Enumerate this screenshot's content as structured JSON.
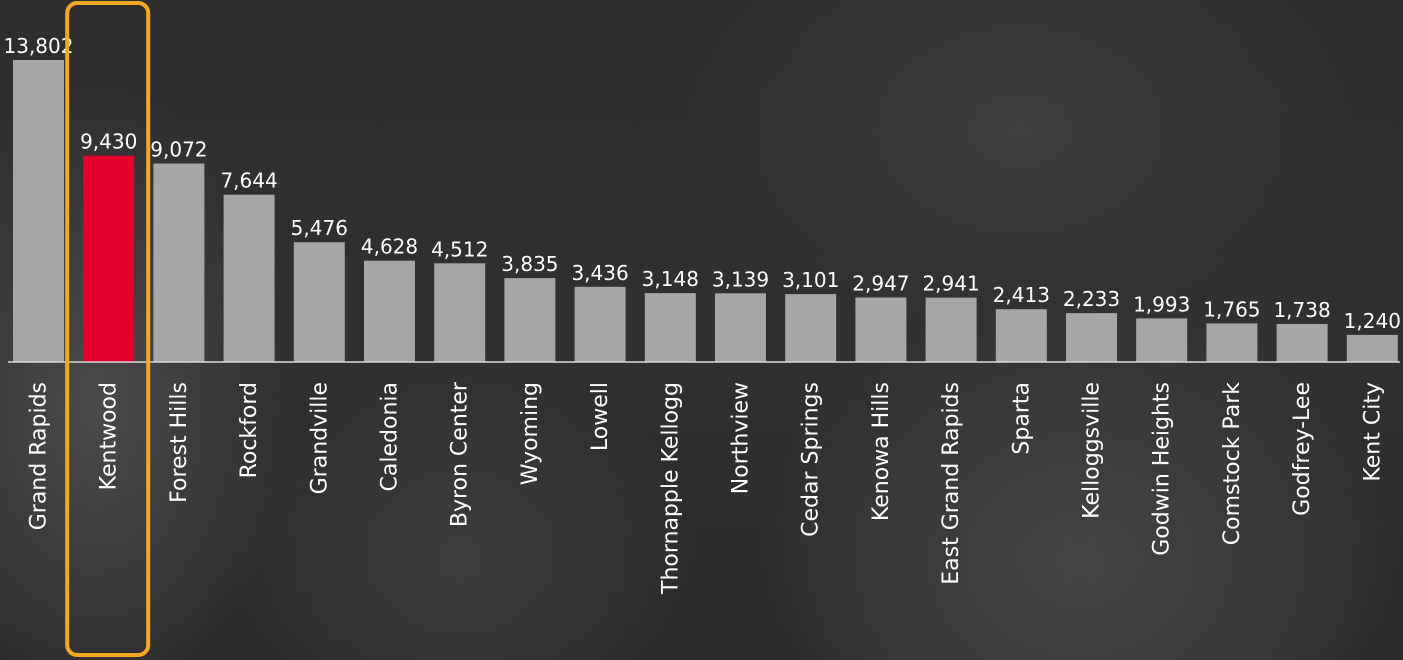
{
  "colors": {
    "bar_default": "#a6a6a6",
    "bar_highlight": "#e4002b",
    "highlight_outline": "#f5a623",
    "text": "#ffffff",
    "baseline": "#d9d9d9"
  },
  "chart_data": {
    "type": "bar",
    "title": "",
    "xlabel": "",
    "ylabel": "",
    "ylim": [
      0,
      13802
    ],
    "grid": false,
    "legend": "none",
    "highlight_category": "Kentwood",
    "categories": [
      "Grand Rapids",
      "Kentwood",
      "Forest Hills",
      "Rockford",
      "Grandville",
      "Caledonia",
      "Byron Center",
      "Wyoming",
      "Lowell",
      "Thornapple Kellogg",
      "Northview",
      "Cedar Springs",
      "Kenowa Hills",
      "East Grand Rapids",
      "Sparta",
      "Kelloggsville",
      "Godwin Heights",
      "Comstock Park",
      "Godfrey-Lee",
      "Kent City"
    ],
    "values": [
      13802,
      9430,
      9072,
      7644,
      5476,
      4628,
      4512,
      3835,
      3436,
      3148,
      3139,
      3101,
      2947,
      2941,
      2413,
      2233,
      1993,
      1765,
      1738,
      1240
    ],
    "value_labels": [
      "13,802",
      "9,430",
      "9,072",
      "7,644",
      "5,476",
      "4,628",
      "4,512",
      "3,835",
      "3,436",
      "3,148",
      "3,139",
      "3,101",
      "2,947",
      "2,941",
      "2,413",
      "2,233",
      "1,993",
      "1,765",
      "1,738",
      "1,240"
    ]
  }
}
